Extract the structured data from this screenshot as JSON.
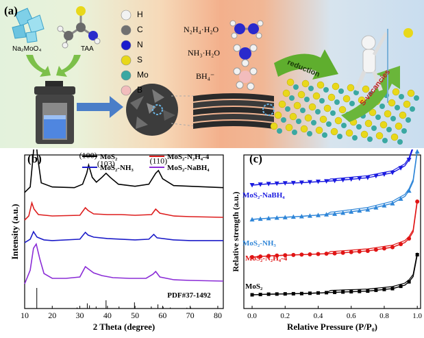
{
  "panel_a": {
    "label": "(a)",
    "precursor_1": "Na₂MoO₄",
    "precursor_2": "TAA",
    "atom_legend": [
      {
        "symbol": "H",
        "color": "#f2f2f2"
      },
      {
        "symbol": "C",
        "color": "#707070"
      },
      {
        "symbol": "N",
        "color": "#1c1ccc"
      },
      {
        "symbol": "S",
        "color": "#e8d81a"
      },
      {
        "symbol": "Mo",
        "color": "#3aa8a2"
      },
      {
        "symbol": "B",
        "color": "#f2bcbc"
      }
    ],
    "reagent_1": "N₂H₄·H₂O",
    "reagent_2": "NH₃·H₂O",
    "reagent_3": "BH₄⁻",
    "arrow_reduction": "reduction",
    "arrow_vacancies": "S-vacancies"
  },
  "panel_b": {
    "label": "(b)",
    "chart_data": {
      "type": "line",
      "xlabel": "2 Theta (degree)",
      "ylabel": "Intensity (a.u.)",
      "xlim": [
        10,
        82
      ],
      "xticks": [
        10,
        20,
        30,
        40,
        50,
        60,
        70,
        80
      ],
      "yticks_shown": false,
      "legend_placement": "top",
      "series": [
        {
          "name": "MoS₂",
          "color": "#000000",
          "offset": 215,
          "points": [
            [
              10,
              0
            ],
            [
              12,
              8
            ],
            [
              13,
              50
            ],
            [
              13.8,
              90
            ],
            [
              14.6,
              55
            ],
            [
              16,
              14
            ],
            [
              20,
              8
            ],
            [
              28,
              7
            ],
            [
              31,
              12
            ],
            [
              32.5,
              28
            ],
            [
              33.2,
              40
            ],
            [
              34.5,
              22
            ],
            [
              36,
              15
            ],
            [
              38,
              22
            ],
            [
              39.5,
              28
            ],
            [
              41,
              22
            ],
            [
              44,
              12
            ],
            [
              50,
              9
            ],
            [
              55,
              12
            ],
            [
              57.5,
              28
            ],
            [
              58.5,
              32
            ],
            [
              60,
              20
            ],
            [
              64,
              10
            ],
            [
              70,
              9
            ],
            [
              82,
              7
            ]
          ]
        },
        {
          "name": "MoS₂-N₂H₄-4",
          "color": "#dd1c1c",
          "offset": 150,
          "points": [
            [
              10,
              0
            ],
            [
              11.5,
              6
            ],
            [
              12.6,
              25
            ],
            [
              13.4,
              16
            ],
            [
              15,
              8
            ],
            [
              20,
              6
            ],
            [
              30,
              7
            ],
            [
              32,
              18
            ],
            [
              33,
              14
            ],
            [
              35,
              9
            ],
            [
              40,
              8
            ],
            [
              45,
              8
            ],
            [
              50,
              7
            ],
            [
              56,
              8
            ],
            [
              57.5,
              16
            ],
            [
              59,
              10
            ],
            [
              64,
              6
            ],
            [
              70,
              5
            ],
            [
              82,
              4
            ]
          ]
        },
        {
          "name": "MoS₂-NH₃",
          "color": "#1a1ac8",
          "offset": 97,
          "points": [
            [
              10,
              0
            ],
            [
              12,
              5
            ],
            [
              13.2,
              16
            ],
            [
              14.5,
              8
            ],
            [
              17,
              4
            ],
            [
              20,
              3
            ],
            [
              30,
              5
            ],
            [
              32,
              15
            ],
            [
              33,
              11
            ],
            [
              35,
              8
            ],
            [
              40,
              6
            ],
            [
              45,
              5
            ],
            [
              50,
              4
            ],
            [
              55,
              5
            ],
            [
              56.8,
              12
            ],
            [
              58,
              7
            ],
            [
              64,
              4
            ],
            [
              70,
              3
            ],
            [
              82,
              3
            ]
          ]
        },
        {
          "name": "MoS₂-NaBH₄",
          "color": "#8a2bd6",
          "offset": 0,
          "points": [
            [
              10,
              0
            ],
            [
              12,
              20
            ],
            [
              13.2,
              52
            ],
            [
              14.2,
              58
            ],
            [
              15.5,
              36
            ],
            [
              17,
              15
            ],
            [
              20,
              8
            ],
            [
              25,
              8
            ],
            [
              30,
              10
            ],
            [
              32,
              25
            ],
            [
              33,
              22
            ],
            [
              35,
              16
            ],
            [
              38,
              12
            ],
            [
              42,
              9
            ],
            [
              48,
              8
            ],
            [
              54,
              8
            ],
            [
              56.5,
              14
            ],
            [
              57.5,
              18
            ],
            [
              59,
              10
            ],
            [
              64,
              6
            ],
            [
              70,
              5
            ],
            [
              82,
              4
            ]
          ]
        }
      ],
      "peak_labels": [
        {
          "text": "(002)",
          "x": 14
        },
        {
          "text": "(100)",
          "x": 33
        },
        {
          "text": "(103)",
          "x": 39.5
        },
        {
          "text": "(110)",
          "x": 58.5
        }
      ],
      "reference": {
        "label": "PDF#37-1492",
        "sticks": [
          [
            14.4,
            1.0
          ],
          [
            29,
            0.05
          ],
          [
            32.7,
            0.25
          ],
          [
            33.5,
            0.15
          ],
          [
            35.9,
            0.1
          ],
          [
            39.5,
            0.4
          ],
          [
            44.2,
            0.1
          ],
          [
            49.8,
            0.3
          ],
          [
            55.9,
            0.1
          ],
          [
            58.3,
            0.2
          ],
          [
            60.2,
            0.08
          ],
          [
            62.8,
            0.05
          ],
          [
            68.8,
            0.04
          ],
          [
            70.2,
            0.05
          ]
        ]
      }
    }
  },
  "panel_c": {
    "label": "(c)",
    "chart_data": {
      "type": "line",
      "xlabel": "Relative Pressure (P/P₀)",
      "ylabel": "Relative strength (a.u.)",
      "xlim": [
        -0.05,
        1.02
      ],
      "xticks": [
        0.0,
        0.2,
        0.4,
        0.6,
        0.8,
        1.0
      ],
      "yticks_shown": false,
      "series": [
        {
          "name": "MoS₂-NaBH₄",
          "color": "#1a1ae0",
          "marker": "triangle-down",
          "offset": 320,
          "points": [
            [
              0,
              0
            ],
            [
              0.1,
              2
            ],
            [
              0.3,
              4
            ],
            [
              0.5,
              7
            ],
            [
              0.7,
              12
            ],
            [
              0.85,
              20
            ],
            [
              0.93,
              32
            ],
            [
              0.97,
              50
            ],
            [
              0.99,
              90
            ],
            [
              1.0,
              150
            ]
          ]
        },
        {
          "name": "MoS₂-NH₃",
          "color": "#2f86d8",
          "marker": "triangle-up",
          "offset": 220,
          "points": [
            [
              0,
              0
            ],
            [
              0.1,
              2
            ],
            [
              0.3,
              5
            ],
            [
              0.5,
              9
            ],
            [
              0.7,
              16
            ],
            [
              0.85,
              26
            ],
            [
              0.93,
              38
            ],
            [
              0.97,
              55
            ],
            [
              0.99,
              80
            ],
            [
              1.0,
              110
            ]
          ]
        },
        {
          "name": "MoS₂-N₂H₄-4",
          "color": "#e01414",
          "marker": "circle",
          "offset": 110,
          "points": [
            [
              0,
              0
            ],
            [
              0.1,
              2
            ],
            [
              0.3,
              4
            ],
            [
              0.5,
              6
            ],
            [
              0.7,
              10
            ],
            [
              0.85,
              16
            ],
            [
              0.93,
              24
            ],
            [
              0.97,
              36
            ],
            [
              0.99,
              55
            ],
            [
              1.0,
              90
            ]
          ]
        },
        {
          "name": "MoS₂",
          "color": "#000000",
          "marker": "square",
          "offset": 0,
          "points": [
            [
              0,
              0
            ],
            [
              0.1,
              1
            ],
            [
              0.3,
              2
            ],
            [
              0.5,
              4
            ],
            [
              0.7,
              6
            ],
            [
              0.85,
              10
            ],
            [
              0.93,
              16
            ],
            [
              0.97,
              26
            ],
            [
              0.99,
              40
            ],
            [
              1.0,
              65
            ]
          ]
        }
      ]
    }
  }
}
